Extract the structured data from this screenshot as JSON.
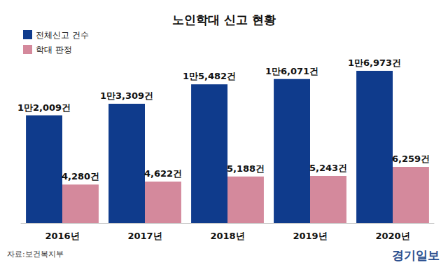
{
  "chart_data": {
    "type": "bar",
    "title": "노인학대 신고 현황",
    "categories": [
      "2016년",
      "2017년",
      "2018년",
      "2019년",
      "2020년"
    ],
    "series": [
      {
        "name": "전체신고 건수",
        "color": "#0f3b8c",
        "values": [
          12009,
          13309,
          15482,
          16071,
          16973
        ],
        "value_labels": [
          "1만2,009건",
          "1만3,309건",
          "1만5,482건",
          "1만6,071건",
          "1만6,973건"
        ]
      },
      {
        "name": "학대 판정",
        "color": "#d4899c",
        "values": [
          4280,
          4622,
          5188,
          5243,
          6259
        ],
        "value_labels": [
          "4,280건",
          "4,622건",
          "5,188건",
          "5,243건",
          "6,259건"
        ]
      }
    ],
    "ylim": [
      0,
      18000
    ],
    "grid": false,
    "legend": "top-left",
    "data_labels": true,
    "tick_labels": "x",
    "annotations": [
      "자료:보건복지부",
      "경기일보"
    ]
  }
}
